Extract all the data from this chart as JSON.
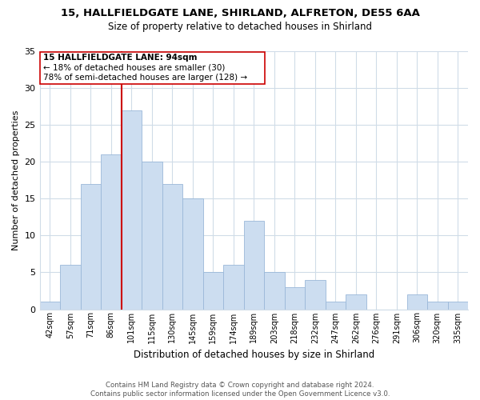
{
  "title": "15, HALLFIELDGATE LANE, SHIRLAND, ALFRETON, DE55 6AA",
  "subtitle": "Size of property relative to detached houses in Shirland",
  "xlabel": "Distribution of detached houses by size in Shirland",
  "ylabel": "Number of detached properties",
  "bar_labels": [
    "42sqm",
    "57sqm",
    "71sqm",
    "86sqm",
    "101sqm",
    "115sqm",
    "130sqm",
    "145sqm",
    "159sqm",
    "174sqm",
    "189sqm",
    "203sqm",
    "218sqm",
    "232sqm",
    "247sqm",
    "262sqm",
    "276sqm",
    "291sqm",
    "306sqm",
    "320sqm",
    "335sqm"
  ],
  "bar_values": [
    1,
    6,
    17,
    21,
    27,
    20,
    17,
    15,
    5,
    6,
    12,
    5,
    3,
    4,
    1,
    2,
    0,
    0,
    2,
    1,
    1
  ],
  "bar_color": "#ccddf0",
  "bar_edge_color": "#9ab8d8",
  "vline_color": "#cc0000",
  "vline_index": 4,
  "ylim": [
    0,
    35
  ],
  "yticks": [
    0,
    5,
    10,
    15,
    20,
    25,
    30,
    35
  ],
  "annotation_title": "15 HALLFIELDGATE LANE: 94sqm",
  "annotation_line1": "← 18% of detached houses are smaller (30)",
  "annotation_line2": "78% of semi-detached houses are larger (128) →",
  "footer_line1": "Contains HM Land Registry data © Crown copyright and database right 2024.",
  "footer_line2": "Contains public sector information licensed under the Open Government Licence v3.0.",
  "bg_color": "#ffffff",
  "grid_color": "#d0dce8",
  "ann_box_color": "#cc0000",
  "ann_box_bg": "#ffffff"
}
